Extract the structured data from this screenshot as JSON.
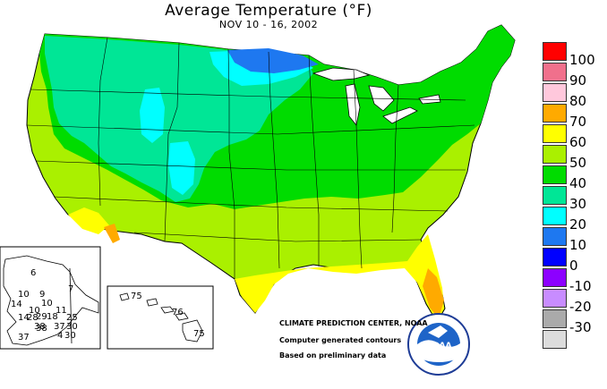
{
  "header": {
    "title": "Average Temperature (°F)",
    "date_range": "NOV 10 - 16, 2002"
  },
  "legend": [
    {
      "label": "100",
      "color": "#ff0000"
    },
    {
      "label": "90",
      "color": "#f0708c"
    },
    {
      "label": "80",
      "color": "#ffc8dc"
    },
    {
      "label": "70",
      "color": "#ffaa00"
    },
    {
      "label": "60",
      "color": "#ffff00"
    },
    {
      "label": "50",
      "color": "#aaf000"
    },
    {
      "label": "40",
      "color": "#00dc00"
    },
    {
      "label": "30",
      "color": "#00e696"
    },
    {
      "label": "20",
      "color": "#00ffff"
    },
    {
      "label": "10",
      "color": "#1e78f0"
    },
    {
      "label": "0",
      "color": "#0000ff"
    },
    {
      "label": "-10",
      "color": "#8c00ff"
    },
    {
      "label": "-20",
      "color": "#c88cff"
    },
    {
      "label": "-30",
      "color": "#aaaaaa"
    },
    {
      "label": "",
      "color": "#dcdcdc"
    }
  ],
  "credits": {
    "center": "CLIMATE PREDICTION CENTER, NOAA",
    "line1": "Computer generated contours",
    "line2": "Based on preliminary data"
  },
  "logo": {
    "text": "NOAA"
  },
  "alaska_labels": [
    "6",
    "7",
    "10",
    "9",
    "10",
    "14",
    "10",
    "29",
    "18",
    "11",
    "14",
    "28",
    "38",
    "25",
    "38",
    "37",
    "30",
    "37",
    "4",
    "30"
  ],
  "hawaii_labels": [
    "75",
    "76",
    "75"
  ]
}
